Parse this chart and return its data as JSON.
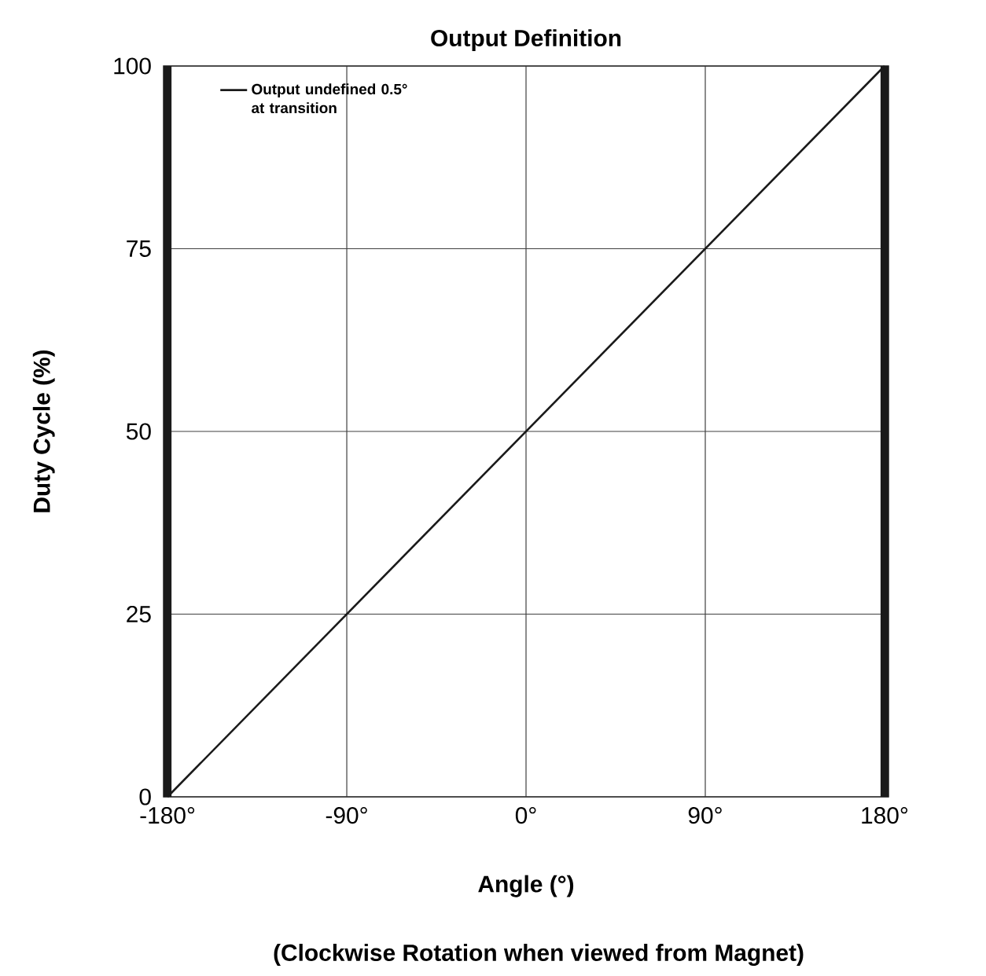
{
  "chart_data": {
    "type": "line",
    "title": "Output Definition",
    "xlabel": "Angle (°)",
    "ylabel": "Duty Cycle (%)",
    "annotations": [
      "(Clockwise Rotation when viewed from Magnet)"
    ],
    "x": [
      -180,
      180
    ],
    "series": [
      {
        "color": "#1a1a1a",
        "values": [
          0,
          100
        ]
      }
    ],
    "xlim": [
      -182,
      182
    ],
    "ylim": [
      0,
      100
    ],
    "xticks": [
      {
        "value": -180,
        "label": "-180°"
      },
      {
        "value": -90,
        "label": "-90°"
      },
      {
        "value": 0,
        "label": "0°"
      },
      {
        "value": 90,
        "label": "90°"
      },
      {
        "value": 180,
        "label": "180°"
      }
    ],
    "yticks": [
      0,
      25,
      50,
      75,
      100
    ],
    "bands": [
      {
        "axis": "x",
        "from": -182,
        "to": -178,
        "color": "#1a1a1a",
        "label": "Output undefined 0.5° at transition"
      },
      {
        "axis": "x",
        "from": 178,
        "to": 182,
        "color": "#1a1a1a"
      }
    ],
    "grid": true,
    "legend": "top left",
    "marker": "none",
    "line_style": "solid"
  }
}
